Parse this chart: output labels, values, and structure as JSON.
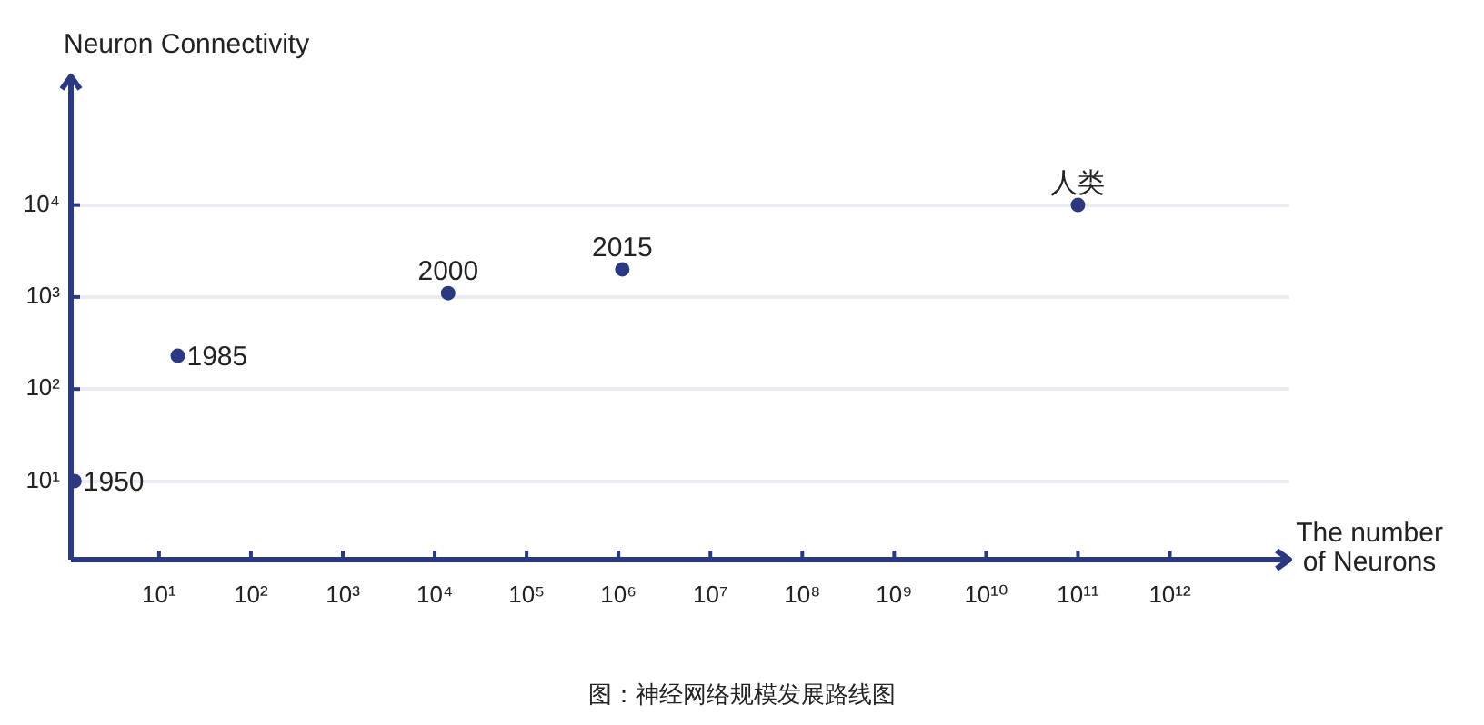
{
  "chart_data": {
    "type": "scatter",
    "ylabel": "Neuron Connectivity",
    "xlabel": "The number\nof Neurons",
    "x": [
      1.2,
      16,
      14000,
      1100000,
      100000000000
    ],
    "series": [
      {
        "color": "#2b3a80",
        "values": [
          10,
          230,
          1100,
          2000,
          10000
        ]
      }
    ],
    "log": "xy",
    "xlim": [
      1.1,
      20000000000000
    ],
    "ylim": [
      1.4,
      250000
    ],
    "xticks": [
      {
        "value": 10,
        "label": "10¹"
      },
      {
        "value": 100,
        "label": "10²"
      },
      {
        "value": 1000,
        "label": "10³"
      },
      {
        "value": 10000,
        "label": "10⁴"
      },
      {
        "value": 100000,
        "label": "10⁵"
      },
      {
        "value": 1000000,
        "label": "10⁶"
      },
      {
        "value": 10000000,
        "label": "10⁷"
      },
      {
        "value": 100000000,
        "label": "10⁸"
      },
      {
        "value": 1000000000,
        "label": "10⁹"
      },
      {
        "value": 10000000000,
        "label": "10¹⁰"
      },
      {
        "value": 100000000000,
        "label": "10¹¹"
      },
      {
        "value": 1000000000000,
        "label": "10¹²"
      }
    ],
    "yticks": [
      {
        "value": 10,
        "label": "10¹"
      },
      {
        "value": 100,
        "label": "10²"
      },
      {
        "value": 1000,
        "label": "10³"
      },
      {
        "value": 10000,
        "label": "10⁴"
      }
    ],
    "grid": "y",
    "marker": "circle",
    "annotations": [
      {
        "text": "1950",
        "x": 1.2,
        "y": 10
      },
      {
        "text": "1985",
        "x": 16,
        "y": 230
      },
      {
        "text": "2000",
        "x": 14000,
        "y": 1100
      },
      {
        "text": "2015",
        "x": 1100000,
        "y": 2000
      },
      {
        "text": "人类",
        "x": 100000000000,
        "y": 10000
      },
      "图：神经网络规模发展路线图"
    ]
  }
}
